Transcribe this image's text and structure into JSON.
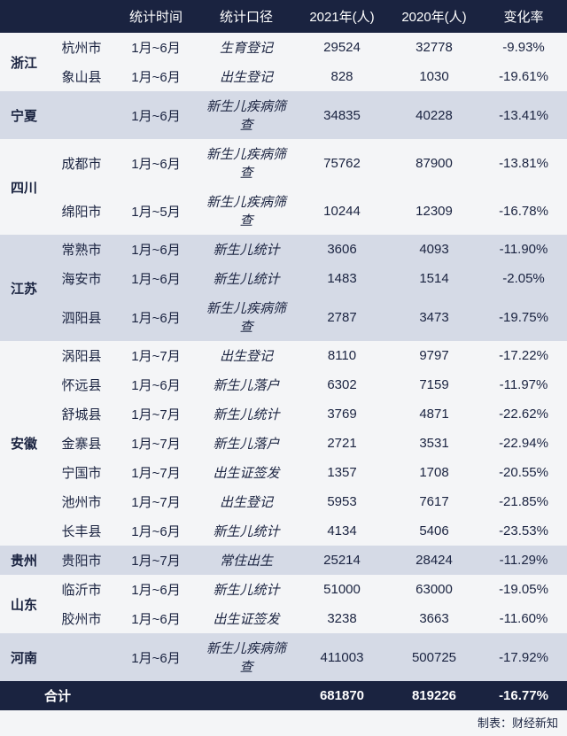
{
  "headers": {
    "province": "",
    "city": "",
    "period": "统计时间",
    "metric": "统计口径",
    "y2021": "2021年(人)",
    "y2020": "2020年(人)",
    "change": "变化率"
  },
  "groups": [
    {
      "province": "浙江",
      "shade": "light",
      "rows": [
        {
          "city": "杭州市",
          "period": "1月~6月",
          "metric": "生育登记",
          "y2021": "29524",
          "y2020": "32778",
          "change": "-9.93%"
        },
        {
          "city": "象山县",
          "period": "1月~6月",
          "metric": "出生登记",
          "y2021": "828",
          "y2020": "1030",
          "change": "-19.61%"
        }
      ]
    },
    {
      "province": "宁夏",
      "shade": "dark",
      "rows": [
        {
          "city": "",
          "period": "1月~6月",
          "metric": "新生儿疾病筛查",
          "y2021": "34835",
          "y2020": "40228",
          "change": "-13.41%"
        }
      ]
    },
    {
      "province": "四川",
      "shade": "light",
      "rows": [
        {
          "city": "成都市",
          "period": "1月~6月",
          "metric": "新生儿疾病筛查",
          "y2021": "75762",
          "y2020": "87900",
          "change": "-13.81%"
        },
        {
          "city": "绵阳市",
          "period": "1月~5月",
          "metric": "新生儿疾病筛查",
          "y2021": "10244",
          "y2020": "12309",
          "change": "-16.78%"
        }
      ]
    },
    {
      "province": "江苏",
      "shade": "dark",
      "rows": [
        {
          "city": "常熟市",
          "period": "1月~6月",
          "metric": "新生儿统计",
          "y2021": "3606",
          "y2020": "4093",
          "change": "-11.90%"
        },
        {
          "city": "海安市",
          "period": "1月~6月",
          "metric": "新生儿统计",
          "y2021": "1483",
          "y2020": "1514",
          "change": "-2.05%"
        },
        {
          "city": "泗阳县",
          "period": "1月~6月",
          "metric": "新生儿疾病筛查",
          "y2021": "2787",
          "y2020": "3473",
          "change": "-19.75%"
        }
      ]
    },
    {
      "province": "安徽",
      "shade": "light",
      "rows": [
        {
          "city": "涡阳县",
          "period": "1月~7月",
          "metric": "出生登记",
          "y2021": "8110",
          "y2020": "9797",
          "change": "-17.22%"
        },
        {
          "city": "怀远县",
          "period": "1月~6月",
          "metric": "新生儿落户",
          "y2021": "6302",
          "y2020": "7159",
          "change": "-11.97%"
        },
        {
          "city": "舒城县",
          "period": "1月~7月",
          "metric": "新生儿统计",
          "y2021": "3769",
          "y2020": "4871",
          "change": "-22.62%"
        },
        {
          "city": "金寨县",
          "period": "1月~7月",
          "metric": "新生儿落户",
          "y2021": "2721",
          "y2020": "3531",
          "change": "-22.94%"
        },
        {
          "city": "宁国市",
          "period": "1月~7月",
          "metric": "出生证签发",
          "y2021": "1357",
          "y2020": "1708",
          "change": "-20.55%"
        },
        {
          "city": "池州市",
          "period": "1月~7月",
          "metric": "出生登记",
          "y2021": "5953",
          "y2020": "7617",
          "change": "-21.85%"
        },
        {
          "city": "长丰县",
          "period": "1月~6月",
          "metric": "新生儿统计",
          "y2021": "4134",
          "y2020": "5406",
          "change": "-23.53%"
        }
      ]
    },
    {
      "province": "贵州",
      "shade": "dark",
      "rows": [
        {
          "city": "贵阳市",
          "period": "1月~7月",
          "metric": "常住出生",
          "y2021": "25214",
          "y2020": "28424",
          "change": "-11.29%"
        }
      ]
    },
    {
      "province": "山东",
      "shade": "light",
      "rows": [
        {
          "city": "临沂市",
          "period": "1月~6月",
          "metric": "新生儿统计",
          "y2021": "51000",
          "y2020": "63000",
          "change": "-19.05%"
        },
        {
          "city": "胶州市",
          "period": "1月~6月",
          "metric": "出生证签发",
          "y2021": "3238",
          "y2020": "3663",
          "change": "-11.60%"
        }
      ]
    },
    {
      "province": "河南",
      "shade": "dark",
      "rows": [
        {
          "city": "",
          "period": "1月~6月",
          "metric": "新生儿疾病筛查",
          "y2021": "411003",
          "y2020": "500725",
          "change": "-17.92%"
        }
      ]
    }
  ],
  "total": {
    "label": "合计",
    "y2021": "681870",
    "y2020": "819226",
    "change": "-16.77%"
  },
  "credit": "制表：财经新知"
}
